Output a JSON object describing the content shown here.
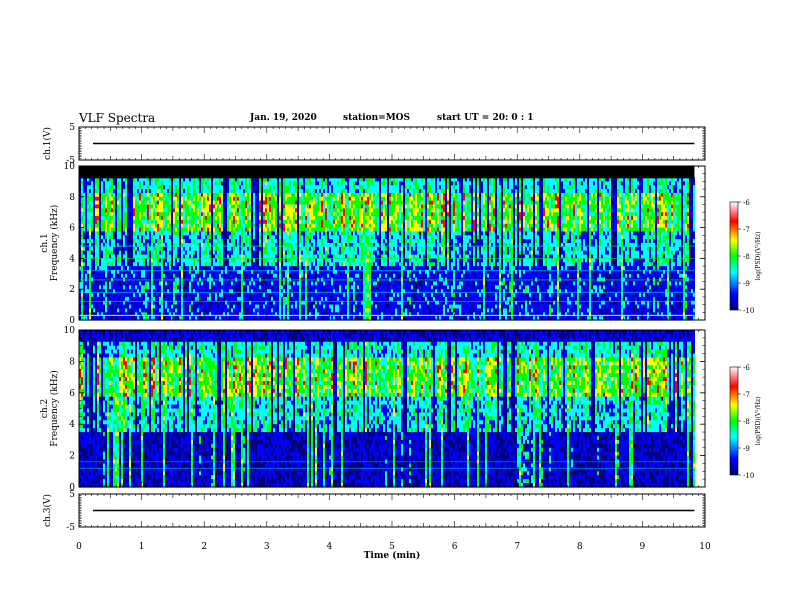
{
  "header": {
    "title": "VLF Spectra",
    "date": "Jan. 19, 2020",
    "station": "station=MOS",
    "start": "start  UT =   20: 0  : 1"
  },
  "chart_data": [
    {
      "type": "line",
      "panel": "ch1-waveform",
      "ylabel": "ch.1(V)",
      "y_ticks": [
        "5",
        "-5"
      ],
      "ylim": [
        -5,
        5
      ],
      "xlim": [
        0,
        10
      ],
      "series": [
        {
          "name": "ch.1 amplitude",
          "x": [
            0,
            9.83
          ],
          "y": [
            0,
            0
          ]
        }
      ]
    },
    {
      "type": "heatmap",
      "panel": "ch1-spectrogram",
      "ylabel": "ch.1",
      "ylabel2": "Frequency (kHz)",
      "y_ticks": [
        "0",
        "2",
        "4",
        "6",
        "8",
        "10"
      ],
      "ylim": [
        0,
        10
      ],
      "xlim": [
        0,
        10
      ],
      "data_end_min": 9.83,
      "colorbar": {
        "label": "log(PSD)(V²/Hz)",
        "ticks": [
          "-6",
          "-7",
          "-8",
          "-9",
          "-10"
        ],
        "range": [
          -10,
          -6
        ]
      }
    },
    {
      "type": "heatmap",
      "panel": "ch2-spectrogram",
      "ylabel": "ch.2",
      "ylabel2": "Frequency (kHz)",
      "y_ticks": [
        "0",
        "2",
        "4",
        "6",
        "8",
        "10"
      ],
      "ylim": [
        0,
        10
      ],
      "xlim": [
        0,
        10
      ],
      "data_end_min": 9.83,
      "colorbar": {
        "label": "log(PSD)(V²/Hz)",
        "ticks": [
          "-6",
          "-7",
          "-8",
          "-9",
          "-10"
        ],
        "range": [
          -10,
          -6
        ]
      }
    },
    {
      "type": "line",
      "panel": "ch3-waveform",
      "ylabel": "ch.3(V)",
      "y_ticks": [
        "5",
        "-5"
      ],
      "ylim": [
        -5,
        5
      ],
      "xlim": [
        0,
        10
      ],
      "xlabel": "Time (min)",
      "x_ticks": [
        "0",
        "1",
        "2",
        "3",
        "4",
        "5",
        "6",
        "7",
        "8",
        "9",
        "10"
      ],
      "series": [
        {
          "name": "ch.3 amplitude",
          "x": [
            0,
            9.83
          ],
          "y": [
            0,
            0
          ]
        }
      ]
    }
  ],
  "colors": {
    "scale": [
      "#000080",
      "#0000ff",
      "#00ffff",
      "#00ff00",
      "#ffff00",
      "#ff0000",
      "#ffffff"
    ]
  }
}
